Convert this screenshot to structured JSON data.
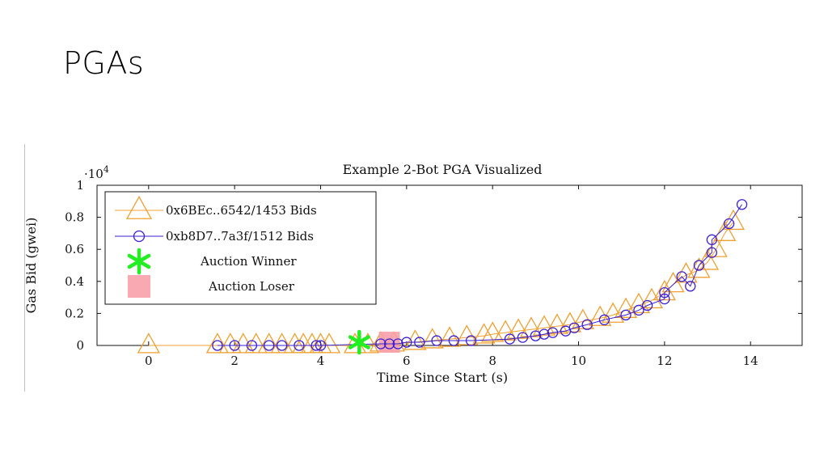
{
  "slide": {
    "title": "PGAs"
  },
  "chart_data": {
    "type": "scatter",
    "title": "Example 2-Bot PGA Visualized",
    "xlabel": "Time Since Start (s)",
    "ylabel": "Gas Bid (gwei)",
    "y_multiplier": "·10",
    "y_multiplier_exp": "4",
    "xlim": [
      -1.2,
      15.2
    ],
    "ylim": [
      0,
      1
    ],
    "x_ticks": [
      0,
      2,
      4,
      6,
      8,
      10,
      12,
      14
    ],
    "y_ticks": [
      0,
      0.2,
      0.4,
      0.6,
      0.8,
      1
    ],
    "grid": false,
    "legend_position": "top-left",
    "colors": {
      "bot_a": "#f0a030",
      "bot_b": "#3b1fd8",
      "winner": "#22ee22",
      "loser": "#f7a0a8"
    },
    "series": [
      {
        "name": "0x6BEc..6542/1453 Bids",
        "marker": "triangle",
        "x": [
          0,
          1.6,
          1.9,
          2.2,
          2.5,
          2.8,
          3.1,
          3.4,
          3.6,
          3.8,
          4.0,
          4.2,
          4.8,
          5.1,
          5.4,
          5.7,
          6.2,
          6.6,
          7.0,
          7.4,
          7.8,
          8.0,
          8.3,
          8.6,
          8.9,
          9.2,
          9.5,
          9.8,
          10.1,
          10.5,
          10.8,
          11.1,
          11.4,
          11.7,
          12.0,
          12.2,
          12.5,
          12.8,
          13.0,
          13.2,
          13.4,
          13.6
        ],
        "y": [
          0,
          0,
          0,
          0,
          0,
          0,
          0,
          0,
          0,
          0,
          0,
          0,
          0,
          0,
          0.01,
          0.01,
          0.02,
          0.03,
          0.04,
          0.05,
          0.06,
          0.07,
          0.08,
          0.09,
          0.1,
          0.11,
          0.12,
          0.13,
          0.15,
          0.17,
          0.19,
          0.22,
          0.25,
          0.28,
          0.33,
          0.38,
          0.44,
          0.47,
          0.52,
          0.6,
          0.7,
          0.77
        ]
      },
      {
        "name": "0xb8D7..7a3f/1512 Bids",
        "marker": "circle",
        "x": [
          1.6,
          2.0,
          2.4,
          2.8,
          3.1,
          3.5,
          3.9,
          4.0,
          5.4,
          5.6,
          5.8,
          6.0,
          6.3,
          6.7,
          7.1,
          7.5,
          8.4,
          8.7,
          9.0,
          9.2,
          9.4,
          9.7,
          9.9,
          10.2,
          10.6,
          11.1,
          11.4,
          11.6,
          12.0,
          12.0,
          12.4,
          12.6,
          12.8,
          13.1,
          13.1,
          13.5,
          13.8
        ],
        "y": [
          0,
          0,
          0,
          0,
          0,
          0,
          0,
          0,
          0.01,
          0.01,
          0.01,
          0.02,
          0.02,
          0.03,
          0.03,
          0.03,
          0.04,
          0.05,
          0.06,
          0.07,
          0.08,
          0.09,
          0.11,
          0.13,
          0.16,
          0.19,
          0.22,
          0.25,
          0.29,
          0.33,
          0.43,
          0.37,
          0.5,
          0.58,
          0.66,
          0.76,
          0.88
        ]
      },
      {
        "name": "Auction Winner",
        "marker": "star",
        "x": [
          4.9
        ],
        "y": [
          0.01
        ]
      },
      {
        "name": "Auction Loser",
        "marker": "square",
        "x": [
          5.6
        ],
        "y": [
          0.01
        ]
      }
    ]
  }
}
